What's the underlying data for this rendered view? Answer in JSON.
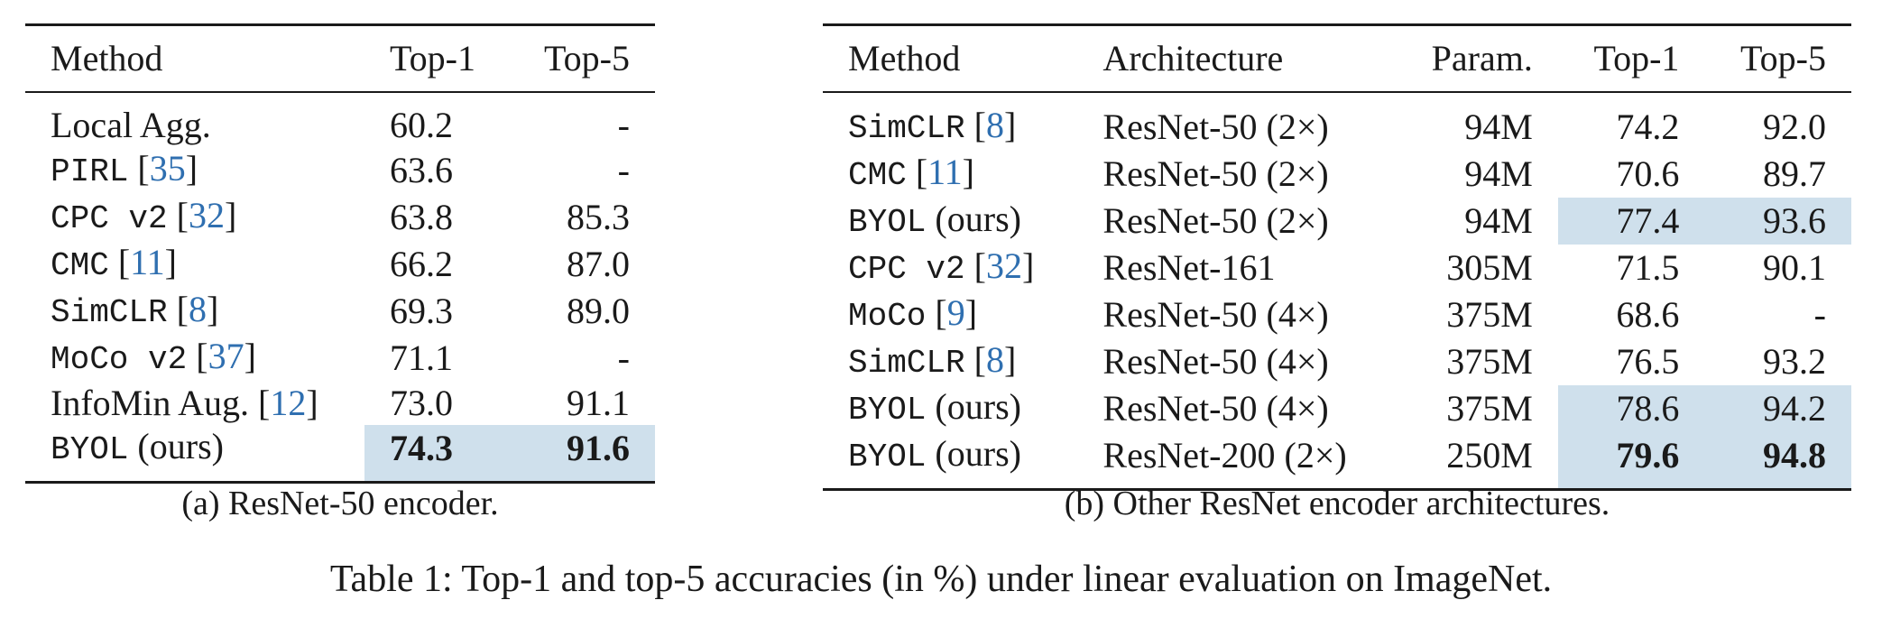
{
  "table_a": {
    "headers": [
      "Method",
      "Top-1",
      "Top-5"
    ],
    "rows": [
      {
        "method": "Local Agg.",
        "mono": false,
        "ref": "",
        "suffix": "",
        "top1": "60.2",
        "top5": "-",
        "highlight": false,
        "bold": false
      },
      {
        "method": "PIRL",
        "mono": true,
        "ref": "35",
        "suffix": "",
        "top1": "63.6",
        "top5": "-",
        "highlight": false,
        "bold": false
      },
      {
        "method": "CPC v2",
        "mono": true,
        "ref": "32",
        "suffix": "",
        "top1": "63.8",
        "top5": "85.3",
        "highlight": false,
        "bold": false
      },
      {
        "method": "CMC",
        "mono": true,
        "ref": "11",
        "suffix": "",
        "top1": "66.2",
        "top5": "87.0",
        "highlight": false,
        "bold": false
      },
      {
        "method": "SimCLR",
        "mono": true,
        "ref": "8",
        "suffix": "",
        "top1": "69.3",
        "top5": "89.0",
        "highlight": false,
        "bold": false
      },
      {
        "method": "MoCo v2",
        "mono": true,
        "ref": "37",
        "suffix": "",
        "top1": "71.1",
        "top5": "-",
        "highlight": false,
        "bold": false
      },
      {
        "method": "InfoMin Aug.",
        "mono": false,
        "ref": "12",
        "suffix": "",
        "top1": "73.0",
        "top5": "91.1",
        "highlight": false,
        "bold": false
      },
      {
        "method": "BYOL",
        "mono": true,
        "ref": "",
        "suffix": "(ours)",
        "top1": "74.3",
        "top5": "91.6",
        "highlight": true,
        "bold": true
      }
    ],
    "caption": "(a) ResNet-50 encoder."
  },
  "table_b": {
    "headers": [
      "Method",
      "Architecture",
      "Param.",
      "Top-1",
      "Top-5"
    ],
    "rows": [
      {
        "method": "SimCLR",
        "mono": true,
        "ref": "8",
        "suffix": "",
        "arch": "ResNet-50 (2×)",
        "param": "94M",
        "top1": "74.2",
        "top5": "92.0",
        "highlight": false,
        "bold": false
      },
      {
        "method": "CMC",
        "mono": true,
        "ref": "11",
        "suffix": "",
        "arch": "ResNet-50 (2×)",
        "param": "94M",
        "top1": "70.6",
        "top5": "89.7",
        "highlight": false,
        "bold": false
      },
      {
        "method": "BYOL",
        "mono": true,
        "ref": "",
        "suffix": "(ours)",
        "arch": "ResNet-50 (2×)",
        "param": "94M",
        "top1": "77.4",
        "top5": "93.6",
        "highlight": true,
        "bold": false
      },
      {
        "method": "CPC v2",
        "mono": true,
        "ref": "32",
        "suffix": "",
        "arch": "ResNet-161",
        "param": "305M",
        "top1": "71.5",
        "top5": "90.1",
        "highlight": false,
        "bold": false
      },
      {
        "method": "MoCo",
        "mono": true,
        "ref": "9",
        "suffix": "",
        "arch": "ResNet-50 (4×)",
        "param": "375M",
        "top1": "68.6",
        "top5": "-",
        "highlight": false,
        "bold": false
      },
      {
        "method": "SimCLR",
        "mono": true,
        "ref": "8",
        "suffix": "",
        "arch": "ResNet-50 (4×)",
        "param": "375M",
        "top1": "76.5",
        "top5": "93.2",
        "highlight": false,
        "bold": false
      },
      {
        "method": "BYOL",
        "mono": true,
        "ref": "",
        "suffix": "(ours)",
        "arch": "ResNet-50 (4×)",
        "param": "375M",
        "top1": "78.6",
        "top5": "94.2",
        "highlight": true,
        "bold": false
      },
      {
        "method": "BYOL",
        "mono": true,
        "ref": "",
        "suffix": "(ours)",
        "arch": "ResNet-200 (2×)",
        "param": "250M",
        "top1": "79.6",
        "top5": "94.8",
        "highlight": true,
        "bold": true
      }
    ],
    "caption": "(b) Other ResNet encoder architectures."
  },
  "caption_main": "Table 1: Top-1 and top-5 accuracies (in %) under linear evaluation on ImageNet.",
  "colors": {
    "highlight": "#cfe0ec",
    "reference_link": "#2f6fb0"
  }
}
